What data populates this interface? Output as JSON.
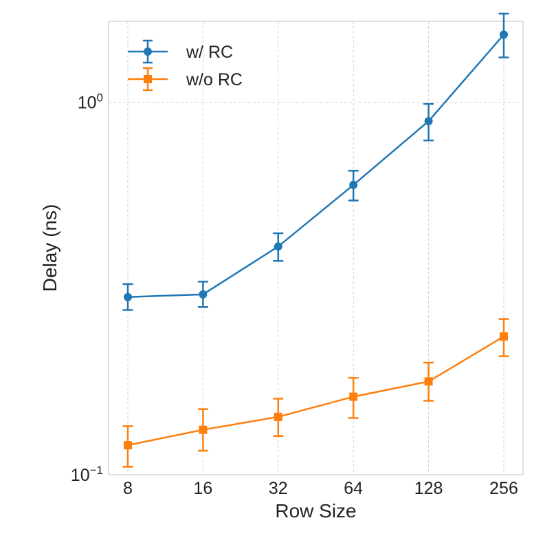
{
  "chart_data": {
    "type": "line",
    "title": "",
    "xlabel": "Row Size",
    "ylabel": "Delay (ns)",
    "x_scale": "log2",
    "y_scale": "log10",
    "categories": [
      "8",
      "16",
      "32",
      "64",
      "128",
      "256"
    ],
    "x": [
      8,
      16,
      32,
      64,
      128,
      256
    ],
    "ylim": [
      0.1,
      1.65
    ],
    "y_ticks": [
      {
        "value": 0.1,
        "base": "10",
        "exponent": "−1"
      },
      {
        "value": 1.0,
        "base": "10",
        "exponent": "0"
      }
    ],
    "grid": true,
    "legend_position": "top-left",
    "series": [
      {
        "name": "w/ RC",
        "color": "#1f77b4",
        "marker": "circle",
        "values": [
          0.3,
          0.305,
          0.41,
          0.6,
          0.89,
          1.52
        ],
        "err_low": [
          0.277,
          0.282,
          0.375,
          0.545,
          0.79,
          1.32
        ],
        "err_high": [
          0.325,
          0.33,
          0.445,
          0.655,
          0.99,
          1.73
        ]
      },
      {
        "name": "w/o RC",
        "color": "#ff7f0e",
        "marker": "square",
        "values": [
          0.12,
          0.132,
          0.143,
          0.162,
          0.178,
          0.235
        ],
        "err_low": [
          0.105,
          0.116,
          0.127,
          0.142,
          0.158,
          0.208
        ],
        "err_high": [
          0.135,
          0.15,
          0.16,
          0.182,
          0.2,
          0.262
        ]
      }
    ]
  }
}
